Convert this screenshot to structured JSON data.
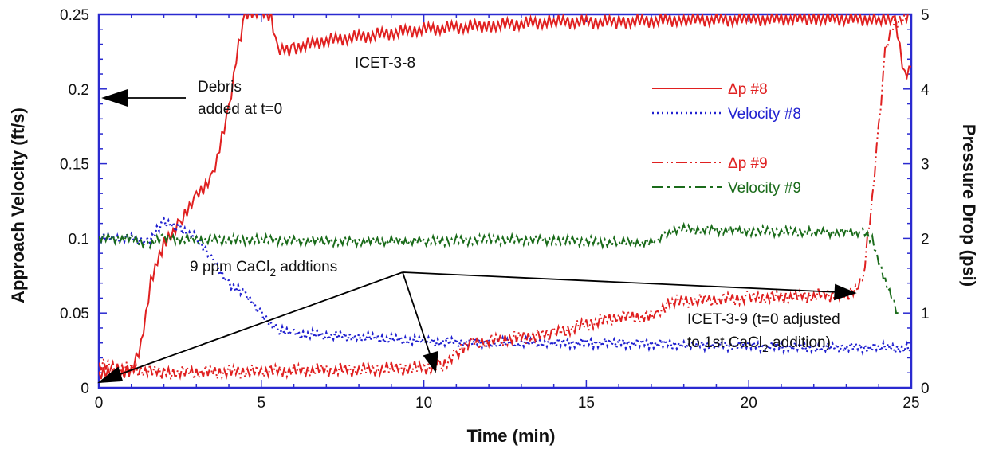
{
  "chart_data": {
    "type": "line",
    "xlabel": "Time (min)",
    "ylabel_left": "Approach Velocity (ft/s)",
    "ylabel_right": "Pressure Drop (psi)",
    "xlim": [
      0,
      25
    ],
    "ylim_left": [
      0,
      0.25
    ],
    "ylim_right": [
      0,
      5
    ],
    "x_ticks": [
      "0",
      "5",
      "10",
      "15",
      "20",
      "25"
    ],
    "y_left_ticks": [
      "0",
      "0.05",
      "0.1",
      "0.15",
      "0.2",
      "0.25"
    ],
    "y_right_ticks": [
      "0",
      "1",
      "2",
      "3",
      "4",
      "5"
    ],
    "grid": false,
    "legend_position": "upper-right",
    "annotations": {
      "debris_line1": "Debris",
      "debris_line2": "added at t=0",
      "icet38": "ICET-3-8",
      "cacl2_pre": "9 ppm CaCl",
      "cacl2_sub": "2",
      "cacl2_post": " addtions",
      "icet39_line1": "ICET-3-9 (t=0 adjusted",
      "icet39_line2_pre": "to 1st CaCl",
      "icet39_line2_sub": "2",
      "icet39_line2_post": " addition)"
    },
    "series": [
      {
        "name": "Δp #8",
        "axis": "right",
        "color": "#e02020",
        "style": "solid",
        "x": [
          0,
          1.0,
          1.3,
          1.6,
          2.0,
          2.5,
          3.0,
          3.5,
          4.0,
          4.3,
          4.5,
          5.0,
          5.3,
          5.5,
          6,
          7,
          8,
          9,
          10,
          12,
          14,
          16,
          18,
          20,
          22,
          24,
          24.5,
          24.8,
          25
        ],
        "y": [
          0.18,
          0.2,
          0.6,
          1.4,
          1.95,
          2.2,
          2.55,
          2.85,
          3.7,
          4.6,
          5.0,
          5.0,
          5.0,
          4.5,
          4.55,
          4.65,
          4.7,
          4.75,
          4.8,
          4.85,
          4.9,
          4.9,
          4.93,
          4.93,
          4.95,
          4.93,
          4.9,
          4.2,
          4.3
        ]
      },
      {
        "name": "Velocity #8",
        "axis": "left",
        "color": "#2020d0",
        "style": "dotted",
        "x": [
          0,
          1.0,
          1.5,
          2.0,
          2.5,
          3.0,
          3.5,
          4.0,
          4.5,
          5.0,
          5.5,
          6,
          8,
          10,
          12,
          14,
          16,
          18,
          20,
          22,
          24,
          25
        ],
        "y": [
          0.1,
          0.1,
          0.098,
          0.11,
          0.107,
          0.1,
          0.085,
          0.07,
          0.062,
          0.05,
          0.038,
          0.036,
          0.034,
          0.031,
          0.03,
          0.03,
          0.03,
          0.029,
          0.028,
          0.027,
          0.027,
          0.026
        ]
      },
      {
        "name": "Δp #9",
        "axis": "right",
        "color": "#e02020",
        "style": "dash-dot-dot",
        "x": [
          0,
          2,
          5,
          9,
          10.5,
          11,
          11.5,
          12.5,
          14,
          15,
          16,
          17.2,
          17.5,
          20,
          23,
          23.5,
          23.8,
          24,
          24.2,
          24.5,
          25
        ],
        "y": [
          0.3,
          0.2,
          0.22,
          0.25,
          0.28,
          0.45,
          0.6,
          0.65,
          0.72,
          0.85,
          0.95,
          0.95,
          1.15,
          1.2,
          1.25,
          1.4,
          2.5,
          3.5,
          4.5,
          4.9,
          5.0
        ]
      },
      {
        "name": "Velocity #9",
        "axis": "left",
        "color": "#1a6b1a",
        "style": "dash-dot",
        "x": [
          0,
          1.0,
          1.5,
          2.0,
          3,
          5,
          7,
          10,
          12,
          14,
          16,
          17.2,
          17.4,
          18,
          20,
          22,
          23.5,
          23.8,
          24.2,
          24.6
        ],
        "y": [
          0.1,
          0.1,
          0.096,
          0.1,
          0.099,
          0.099,
          0.098,
          0.098,
          0.099,
          0.099,
          0.097,
          0.097,
          0.103,
          0.106,
          0.105,
          0.104,
          0.104,
          0.1,
          0.07,
          0.05
        ]
      }
    ]
  }
}
